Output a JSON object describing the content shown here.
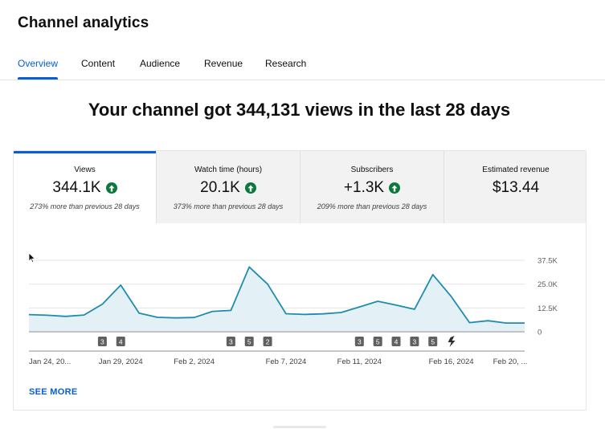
{
  "header": {
    "title": "Channel analytics"
  },
  "tabs": [
    {
      "label": "Overview",
      "active": true
    },
    {
      "label": "Content",
      "active": false
    },
    {
      "label": "Audience",
      "active": false
    },
    {
      "label": "Revenue",
      "active": false
    },
    {
      "label": "Research",
      "active": false
    }
  ],
  "headline": "Your channel got 344,131 views in the last 28 days",
  "metrics": [
    {
      "label": "Views",
      "value": "344.1K",
      "trend": "up",
      "change": "273% more than previous 28 days",
      "active": true
    },
    {
      "label": "Watch time (hours)",
      "value": "20.1K",
      "trend": "up",
      "change": "373% more than previous 28 days",
      "active": false
    },
    {
      "label": "Subscribers",
      "value": "+1.3K",
      "trend": "up",
      "change": "209% more than previous 28 days",
      "active": false
    },
    {
      "label": "Estimated revenue",
      "value": "$13.44",
      "trend": "",
      "change": "",
      "active": false
    }
  ],
  "chart_data": {
    "type": "area",
    "ylim": [
      0,
      37500
    ],
    "ytick_labels": [
      "37.5K",
      "25.0K",
      "12.5K",
      "0"
    ],
    "ytick_values": [
      37500,
      25000,
      12500,
      0
    ],
    "x_labels": [
      "Jan 24, 20...",
      "Jan 29, 2024",
      "Feb 2, 2024",
      "Feb 7, 2024",
      "Feb 11, 2024",
      "Feb 16, 2024",
      "Feb 20, ..."
    ],
    "x_label_days": [
      0,
      5,
      9,
      14,
      18,
      23,
      27
    ],
    "series": [
      {
        "values": [
          9000,
          8700,
          8100,
          8800,
          14500,
          24500,
          9800,
          7600,
          7300,
          7500,
          10700,
          11200,
          34000,
          25000,
          9500,
          9100,
          9400,
          10100,
          13000,
          16000,
          14000,
          11800,
          30000,
          18500,
          4800,
          5800,
          4600,
          4600
        ]
      }
    ],
    "markers": [
      {
        "day": 4,
        "label": "3"
      },
      {
        "day": 5,
        "label": "4"
      },
      {
        "day": 11,
        "label": "3"
      },
      {
        "day": 12,
        "label": "5"
      },
      {
        "day": 13,
        "label": "2"
      },
      {
        "day": 18,
        "label": "3"
      },
      {
        "day": 19,
        "label": "5"
      },
      {
        "day": 20,
        "label": "4"
      },
      {
        "day": 21,
        "label": "3"
      },
      {
        "day": 22,
        "label": "5"
      },
      {
        "day": 23,
        "label": "",
        "icon": "shorts-icon"
      }
    ],
    "colors": {
      "line": "#1f8cad",
      "fill": "#e3f1f6",
      "grid": "#e5e5e5",
      "marker": "#606060"
    },
    "grid": true
  },
  "footer": {
    "see_more": "SEE MORE"
  }
}
